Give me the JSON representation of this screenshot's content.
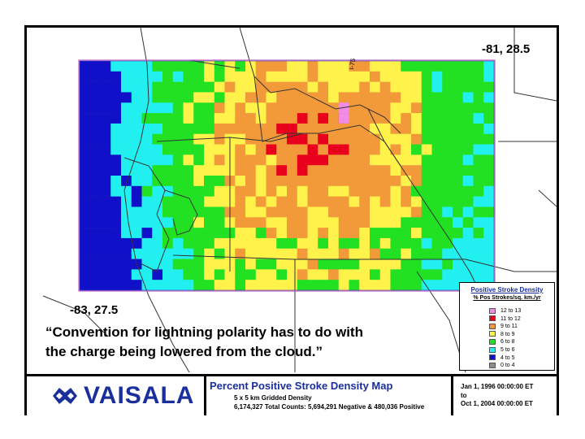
{
  "map": {
    "coord_ne": "-81, 28.5",
    "coord_sw": "-83, 27.5",
    "road_label": "I-75",
    "quote_line1": "“Convention for lightning polarity has to do with",
    "quote_line2": "the charge being lowered from the cloud.”"
  },
  "legend": {
    "title": "Positive Stroke Density",
    "subtitle": "% Pos Strokes/sq. km./yr",
    "items": [
      {
        "label": "12 to 13",
        "color": "#f08ce8"
      },
      {
        "label": "11 to 12",
        "color": "#e8001c"
      },
      {
        "label": "9 to 11",
        "color": "#f29a3a"
      },
      {
        "label": "8 to 9",
        "color": "#fff24a"
      },
      {
        "label": "6 to 8",
        "color": "#22e022"
      },
      {
        "label": "5 to 6",
        "color": "#22f0f0"
      },
      {
        "label": "4 to 5",
        "color": "#1010c8"
      },
      {
        "label": "0 to 4",
        "color": "#8c8c8c"
      }
    ]
  },
  "footer": {
    "logo_text": "VAISALA",
    "title": "Percent Positive Stroke Density Map",
    "sub1": "5 x 5 km Gridded Density",
    "sub2": "6,174,327 Total Counts: 5,694,291 Negative & 480,036 Positive",
    "date_start": "Jan 1, 1996 00:00:00 ET",
    "date_to": "to",
    "date_end": "Oct 1, 2004 00:00:00 ET"
  }
}
